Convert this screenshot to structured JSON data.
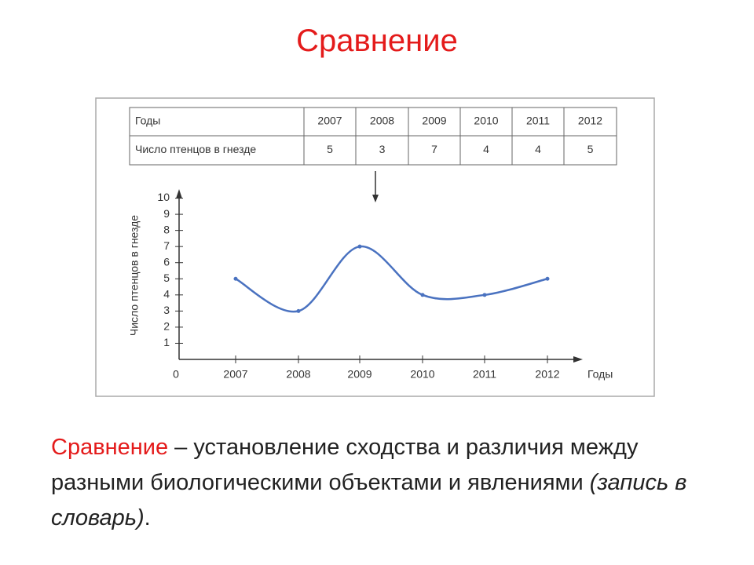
{
  "title": "Сравнение",
  "table": {
    "rows": [
      [
        "Годы",
        "2007",
        "2008",
        "2009",
        "2010",
        "2011",
        "2012"
      ],
      [
        "Число птенцов в гнезде",
        "5",
        "3",
        "7",
        "4",
        "4",
        "5"
      ]
    ]
  },
  "chart_data": {
    "type": "line",
    "x_label": "Годы",
    "y_label": "Число птенцов в гнезде",
    "categories": [
      "2007",
      "2008",
      "2009",
      "2010",
      "2011",
      "2012"
    ],
    "values": [
      5,
      3,
      7,
      4,
      4,
      5
    ],
    "color": "#4a72c0",
    "ylim": [
      0,
      11
    ],
    "yticks": [
      0,
      1,
      2,
      3,
      4,
      5,
      6,
      7,
      8,
      9,
      10
    ]
  },
  "definition": {
    "term": "Сравнение",
    "text": "– установление сходства и различия между разными биологическими объектами и явлениями",
    "note": "(запись в словарь)",
    "end": "."
  }
}
